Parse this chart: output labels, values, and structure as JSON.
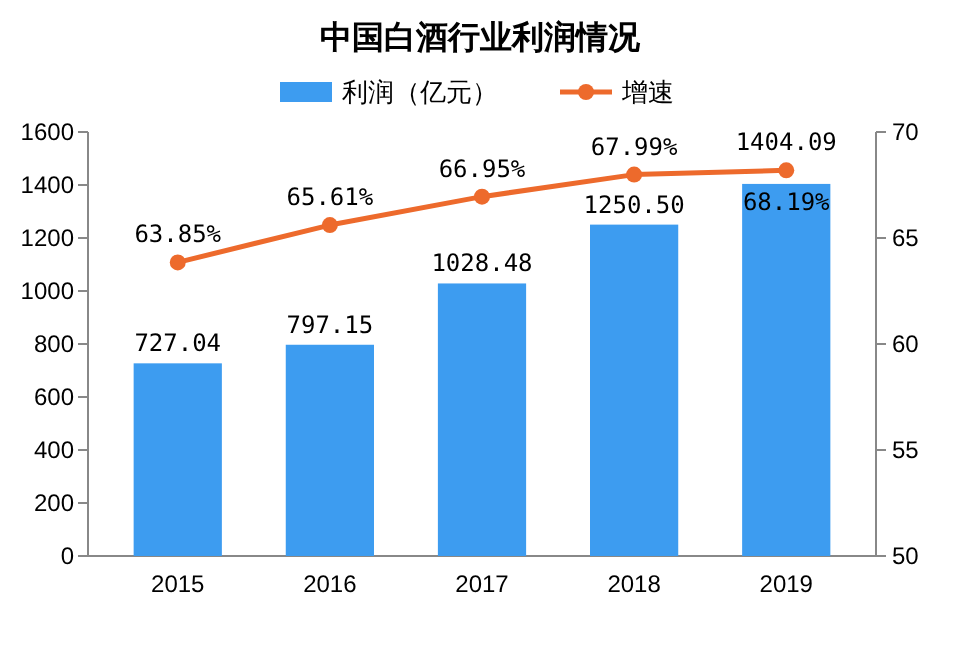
{
  "chart_data": {
    "type": "bar",
    "title": "中国白酒行业利润情况",
    "categories": [
      "2015",
      "2016",
      "2017",
      "2018",
      "2019"
    ],
    "series": [
      {
        "name": "利润（亿元）",
        "color": "#3d9cf0",
        "values": [
          727.04,
          797.15,
          1028.48,
          1250.5,
          1404.09
        ],
        "value_labels": [
          "727.04",
          "797.15",
          "1028.48",
          "1250.50",
          "1404.09"
        ]
      },
      {
        "name": "增速",
        "type": "line",
        "axis": "y2",
        "color": "#ed6a2c",
        "values": [
          63.85,
          65.61,
          66.95,
          67.99,
          68.19
        ],
        "value_labels": [
          "63.85%",
          "65.61%",
          "66.95%",
          "67.99%",
          "68.19%"
        ],
        "marker": "circle"
      }
    ],
    "ylim": [
      0,
      1600
    ],
    "yticks": [
      0,
      200,
      400,
      600,
      800,
      1000,
      1200,
      1400,
      1600
    ],
    "y2lim": [
      50,
      70
    ],
    "y2ticks": [
      50,
      55,
      60,
      65,
      70
    ],
    "legend": "top",
    "grid": false
  }
}
